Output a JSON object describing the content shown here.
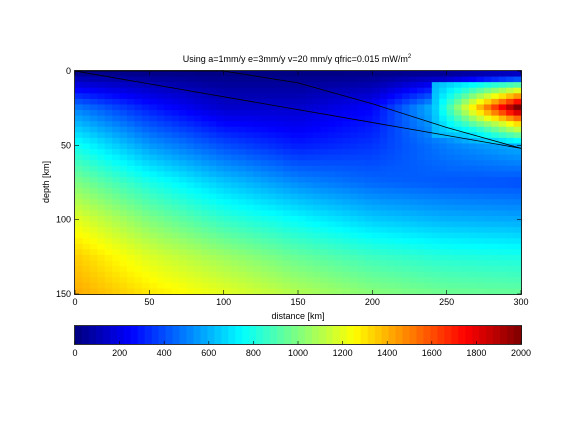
{
  "chart_data": {
    "type": "heatmap",
    "title": "Using a=1mm/y e=3mm/y v=20 mm/y qfric=0.015 mW/m",
    "title_superscript": "2",
    "xlabel": "distance  [km]",
    "ylabel": "depth [km]",
    "xlim": [
      0,
      300
    ],
    "ylim": [
      150,
      0
    ],
    "y_reversed": true,
    "x_ticks": [
      "0",
      "50",
      "100",
      "150",
      "200",
      "250",
      "300"
    ],
    "y_ticks": [
      "0",
      "50",
      "100",
      "150"
    ],
    "colormap": "jet",
    "clim": [
      0,
      2000
    ],
    "colorbar_ticks": [
      "0",
      "200",
      "400",
      "600",
      "800",
      "1000",
      "1200",
      "1400",
      "1600",
      "1800",
      "2000"
    ],
    "colorbar_orientation": "horizontal",
    "field_samples": {
      "x": [
        0,
        50,
        100,
        150,
        200,
        250,
        300
      ],
      "depth": [
        0,
        25,
        50,
        75,
        100,
        125,
        150
      ],
      "values": [
        [
          0,
          0,
          0,
          0,
          0,
          0,
          0
        ],
        [
          500,
          300,
          150,
          150,
          250,
          700,
          1900
        ],
        [
          780,
          550,
          400,
          300,
          350,
          500,
          600
        ],
        [
          1000,
          800,
          640,
          520,
          450,
          420,
          400
        ],
        [
          1200,
          1000,
          850,
          750,
          650,
          600,
          580
        ],
        [
          1350,
          1180,
          1060,
          950,
          870,
          820,
          800
        ],
        [
          1420,
          1300,
          1200,
          1100,
          1020,
          970,
          950
        ]
      ]
    },
    "lines": [
      {
        "x": [
          0,
          300
        ],
        "y": [
          0,
          52
        ]
      },
      {
        "x": [
          0,
          100,
          150,
          200,
          250,
          300
        ],
        "y": [
          0,
          0,
          8,
          22,
          38,
          52
        ]
      }
    ]
  }
}
